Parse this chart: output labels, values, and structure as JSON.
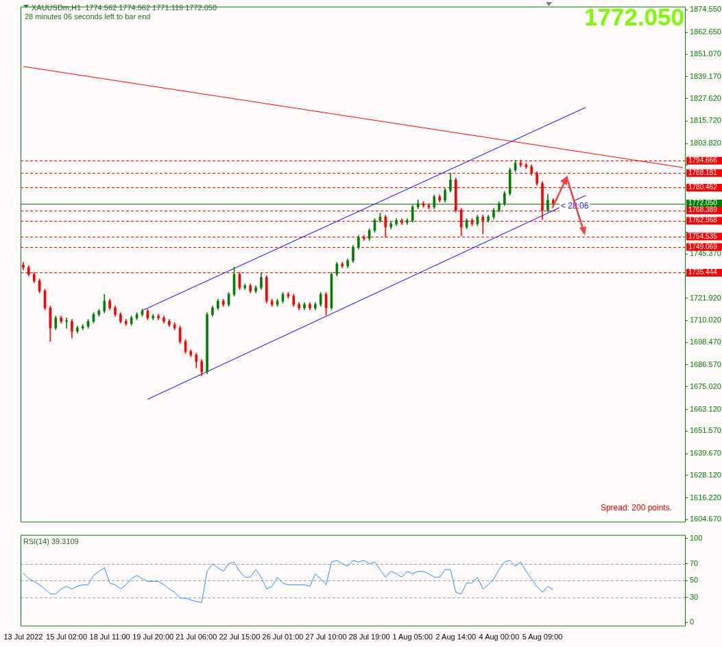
{
  "chart_data": [
    {
      "type": "candlestick",
      "tick_labels": "y",
      "annotations": [
        "XAUUSDm,H1  1774.562 1774.562 1771.119 1772.050",
        "28 minutes 06 seconds left to bar end",
        "1772.050",
        "Spread: 200 points.",
        "< 28:06"
      ],
      "categories": [
        null,
        null,
        null,
        null,
        null,
        null,
        null,
        null,
        null,
        null,
        null,
        null,
        null,
        null,
        null,
        null,
        null,
        null,
        null,
        null,
        null,
        null,
        null,
        null,
        null,
        null,
        null,
        null,
        null,
        null,
        null,
        null,
        null,
        null,
        null,
        null,
        null,
        null,
        null,
        null,
        null,
        null,
        null,
        null,
        null,
        null,
        null,
        null,
        null,
        null,
        null,
        null,
        null,
        null,
        null,
        null,
        null,
        null,
        null,
        null,
        null,
        null,
        null,
        null,
        null,
        null,
        null,
        null,
        null,
        null,
        null,
        null,
        null,
        null,
        null,
        null,
        null,
        null,
        null,
        null,
        null,
        null,
        null,
        null,
        null,
        null,
        null,
        null,
        null,
        null,
        null,
        null,
        null,
        null,
        null,
        null,
        null,
        null,
        null,
        null,
        null,
        null,
        null,
        null,
        null,
        null,
        null,
        null,
        null,
        null,
        null,
        null,
        null,
        null,
        null,
        null,
        null,
        null,
        null,
        null,
        null,
        null,
        null
      ],
      "ohlc": [
        [
          1739.5,
          1741.0,
          1737.0,
          1738.2
        ],
        [
          1738.2,
          1739.2,
          1733.6,
          1734.6
        ],
        [
          1734.6,
          1735.6,
          1730.1,
          1731.1
        ],
        [
          1731.1,
          1732.1,
          1724.7,
          1725.7
        ],
        [
          1725.7,
          1726.7,
          1715.8,
          1716.8
        ],
        [
          1716.8,
          1717.8,
          1699.0,
          1706.2
        ],
        [
          1706.2,
          1712.5,
          1705.2,
          1711.5
        ],
        [
          1711.5,
          1712.5,
          1708.7,
          1709.7
        ],
        [
          1709.7,
          1711.5,
          1706.0,
          1709.7
        ],
        [
          1709.7,
          1710.7,
          1701.0,
          1704.4
        ],
        [
          1704.4,
          1707.2,
          1703.4,
          1706.2
        ],
        [
          1706.2,
          1708.0,
          1705.2,
          1707.0
        ],
        [
          1707.0,
          1710.7,
          1706.0,
          1709.7
        ],
        [
          1709.7,
          1714.3,
          1708.7,
          1713.3
        ],
        [
          1713.3,
          1716.1,
          1712.3,
          1715.1
        ],
        [
          1715.1,
          1724.0,
          1714.1,
          1720.4
        ],
        [
          1720.4,
          1721.4,
          1715.8,
          1716.8
        ],
        [
          1716.8,
          1717.8,
          1712.3,
          1713.3
        ],
        [
          1713.3,
          1714.3,
          1708.7,
          1709.7
        ],
        [
          1709.7,
          1710.7,
          1707.5,
          1708.5
        ],
        [
          1708.5,
          1712.5,
          1707.5,
          1711.5
        ],
        [
          1711.5,
          1714.3,
          1710.5,
          1713.3
        ],
        [
          1713.3,
          1716.1,
          1712.3,
          1715.1
        ],
        [
          1715.1,
          1716.1,
          1710.5,
          1711.5
        ],
        [
          1711.5,
          1713.4,
          1710.5,
          1712.4
        ],
        [
          1712.4,
          1713.4,
          1710.5,
          1711.5
        ],
        [
          1711.5,
          1712.5,
          1708.7,
          1709.7
        ],
        [
          1709.7,
          1710.7,
          1706.9,
          1707.9
        ],
        [
          1707.9,
          1708.9,
          1705.2,
          1706.2
        ],
        [
          1706.2,
          1707.2,
          1698.0,
          1699.0
        ],
        [
          1699.0,
          1700.0,
          1692.7,
          1693.7
        ],
        [
          1693.7,
          1694.7,
          1690.9,
          1691.9
        ],
        [
          1691.9,
          1692.9,
          1685.0,
          1688.4
        ],
        [
          1688.4,
          1689.4,
          1681.0,
          1683.0
        ],
        [
          1683.0,
          1714.3,
          1682.0,
          1713.3
        ],
        [
          1713.3,
          1717.8,
          1712.3,
          1716.8
        ],
        [
          1716.8,
          1721.4,
          1715.8,
          1720.4
        ],
        [
          1720.4,
          1721.4,
          1717.6,
          1718.6
        ],
        [
          1718.6,
          1725.0,
          1717.6,
          1724.0
        ],
        [
          1724.0,
          1738.5,
          1723.0,
          1734.6
        ],
        [
          1734.6,
          1735.6,
          1726.5,
          1727.5
        ],
        [
          1727.5,
          1729.5,
          1726.5,
          1728.5
        ],
        [
          1728.5,
          1729.5,
          1724.7,
          1725.7
        ],
        [
          1725.7,
          1728.5,
          1724.7,
          1727.5
        ],
        [
          1727.5,
          1735.3,
          1726.5,
          1732.9
        ],
        [
          1732.9,
          1733.9,
          1719.4,
          1720.4
        ],
        [
          1720.4,
          1721.4,
          1717.6,
          1718.6
        ],
        [
          1718.6,
          1721.4,
          1717.6,
          1720.4
        ],
        [
          1720.4,
          1725.0,
          1719.4,
          1724.0
        ],
        [
          1724.0,
          1725.0,
          1722.0,
          1723.0
        ],
        [
          1723.0,
          1724.0,
          1717.6,
          1718.6
        ],
        [
          1718.6,
          1719.6,
          1715.8,
          1716.8
        ],
        [
          1716.8,
          1719.6,
          1715.8,
          1718.6
        ],
        [
          1718.6,
          1719.6,
          1715.8,
          1716.8
        ],
        [
          1716.8,
          1719.6,
          1715.8,
          1718.6
        ],
        [
          1718.6,
          1725.0,
          1717.6,
          1724.0
        ],
        [
          1724.0,
          1725.0,
          1713.0,
          1716.8
        ],
        [
          1716.8,
          1735.6,
          1715.8,
          1734.6
        ],
        [
          1734.6,
          1741.0,
          1733.6,
          1740.0
        ],
        [
          1740.0,
          1741.0,
          1738.0,
          1739.0
        ],
        [
          1739.0,
          1742.8,
          1738.0,
          1741.8
        ],
        [
          1741.8,
          1749.9,
          1740.8,
          1748.9
        ],
        [
          1748.9,
          1755.2,
          1747.9,
          1754.2
        ],
        [
          1754.2,
          1755.2,
          1752.5,
          1753.5
        ],
        [
          1753.5,
          1758.8,
          1752.5,
          1757.8
        ],
        [
          1757.8,
          1764.1,
          1756.8,
          1763.1
        ],
        [
          1763.1,
          1767.0,
          1762.1,
          1764.9
        ],
        [
          1764.9,
          1765.9,
          1754.0,
          1759.6
        ],
        [
          1759.6,
          1762.3,
          1758.6,
          1761.3
        ],
        [
          1761.3,
          1764.1,
          1760.3,
          1763.1
        ],
        [
          1763.1,
          1764.1,
          1761.0,
          1762.0
        ],
        [
          1762.0,
          1764.1,
          1761.0,
          1763.1
        ],
        [
          1763.1,
          1771.2,
          1762.1,
          1770.2
        ],
        [
          1770.2,
          1774.0,
          1769.2,
          1772.0
        ],
        [
          1772.0,
          1773.0,
          1770.0,
          1771.0
        ],
        [
          1771.0,
          1772.0,
          1769.2,
          1770.2
        ],
        [
          1770.2,
          1776.6,
          1769.2,
          1775.6
        ],
        [
          1775.6,
          1776.6,
          1772.8,
          1773.8
        ],
        [
          1773.8,
          1780.1,
          1772.8,
          1779.1
        ],
        [
          1779.1,
          1788.2,
          1778.1,
          1784.5
        ],
        [
          1784.5,
          1785.5,
          1767.5,
          1768.5
        ],
        [
          1768.5,
          1769.5,
          1755.0,
          1759.6
        ],
        [
          1759.6,
          1764.1,
          1758.6,
          1763.1
        ],
        [
          1763.1,
          1764.1,
          1760.3,
          1761.3
        ],
        [
          1761.3,
          1765.9,
          1760.3,
          1764.9
        ],
        [
          1764.9,
          1765.9,
          1756.0,
          1763.1
        ],
        [
          1763.1,
          1765.9,
          1762.1,
          1764.9
        ],
        [
          1764.9,
          1769.5,
          1763.9,
          1768.5
        ],
        [
          1768.5,
          1773.0,
          1767.5,
          1772.0
        ],
        [
          1772.0,
          1778.4,
          1771.0,
          1777.4
        ],
        [
          1777.4,
          1790.8,
          1776.4,
          1789.8
        ],
        [
          1789.8,
          1795.0,
          1788.8,
          1793.4
        ],
        [
          1793.4,
          1795.0,
          1791.5,
          1792.5
        ],
        [
          1792.5,
          1793.5,
          1790.6,
          1791.6
        ],
        [
          1791.6,
          1792.6,
          1787.0,
          1788.0
        ],
        [
          1788.0,
          1789.0,
          1781.7,
          1782.7
        ],
        [
          1782.7,
          1783.7,
          1763.5,
          1768.5
        ],
        [
          1768.5,
          1777.0,
          1767.5,
          1773.8
        ],
        [
          1773.8,
          1774.6,
          1771.1,
          1772.1
        ],
        null,
        null,
        null,
        null,
        null,
        null,
        null,
        null,
        null,
        null,
        null,
        null,
        null,
        null,
        null,
        null,
        null,
        null,
        null,
        null,
        null,
        null,
        null,
        null
      ],
      "series": [
        {
          "type": "line",
          "color": "#ff0000",
          "values": [
            1844.6,
            null,
            null,
            null,
            null,
            null,
            null,
            null,
            null,
            null,
            null,
            null,
            null,
            null,
            null,
            null,
            null,
            null,
            null,
            null,
            null,
            null,
            null,
            null,
            null,
            null,
            null,
            null,
            null,
            null,
            null,
            null,
            null,
            null,
            null,
            null,
            null,
            null,
            null,
            null,
            null,
            null,
            null,
            null,
            null,
            null,
            null,
            null,
            null,
            null,
            null,
            null,
            null,
            null,
            null,
            null,
            null,
            null,
            null,
            null,
            null,
            null,
            null,
            null,
            null,
            null,
            null,
            null,
            null,
            null,
            null,
            null,
            null,
            null,
            null,
            null,
            null,
            null,
            null,
            null,
            null,
            null,
            null,
            null,
            null,
            null,
            null,
            null,
            null,
            null,
            null,
            null,
            null,
            null,
            null,
            null,
            null,
            null,
            null,
            null,
            null,
            null,
            null,
            null,
            null,
            null,
            null,
            null,
            null,
            null,
            null,
            null,
            null,
            null,
            null,
            null,
            null,
            null,
            null,
            null,
            null,
            null,
            1791.1
          ]
        },
        {
          "type": "line",
          "color": "#0000ff",
          "values": [
            null,
            null,
            null,
            null,
            null,
            null,
            null,
            null,
            null,
            null,
            null,
            null,
            null,
            null,
            null,
            null,
            null,
            null,
            null,
            null,
            null,
            null,
            1715.4,
            null,
            null,
            null,
            null,
            null,
            null,
            null,
            null,
            null,
            null,
            null,
            null,
            null,
            null,
            null,
            null,
            null,
            null,
            null,
            null,
            null,
            null,
            null,
            null,
            null,
            null,
            null,
            null,
            null,
            null,
            null,
            null,
            null,
            null,
            null,
            null,
            null,
            null,
            null,
            null,
            null,
            null,
            null,
            null,
            null,
            null,
            null,
            null,
            null,
            null,
            null,
            null,
            null,
            null,
            null,
            null,
            null,
            null,
            null,
            null,
            null,
            null,
            null,
            null,
            null,
            null,
            null,
            null,
            null,
            null,
            null,
            null,
            null,
            null,
            null,
            null,
            null,
            null,
            null,
            null,
            null,
            1822.9,
            null,
            null,
            null,
            null,
            null,
            null,
            null,
            null,
            null,
            null,
            null,
            null,
            null,
            null,
            null,
            null,
            null,
            null
          ]
        },
        {
          "type": "line",
          "color": "#0000ff",
          "values": [
            null,
            null,
            null,
            null,
            null,
            null,
            null,
            null,
            null,
            null,
            null,
            null,
            null,
            null,
            null,
            null,
            null,
            null,
            null,
            null,
            null,
            null,
            null,
            1668.4,
            null,
            null,
            null,
            null,
            null,
            null,
            null,
            null,
            null,
            null,
            null,
            null,
            null,
            null,
            null,
            null,
            null,
            null,
            null,
            null,
            null,
            null,
            null,
            null,
            null,
            null,
            null,
            null,
            null,
            null,
            null,
            null,
            null,
            null,
            null,
            null,
            null,
            null,
            null,
            null,
            null,
            null,
            null,
            null,
            null,
            null,
            null,
            null,
            null,
            null,
            null,
            null,
            null,
            null,
            null,
            null,
            null,
            null,
            null,
            null,
            null,
            null,
            null,
            null,
            null,
            null,
            null,
            null,
            null,
            null,
            null,
            null,
            null,
            null,
            null,
            null,
            null,
            null,
            null,
            null,
            1776.3,
            null,
            null,
            null,
            null,
            null,
            null,
            null,
            null,
            null,
            null,
            null,
            null,
            null,
            null,
            null,
            null,
            null,
            null
          ]
        }
      ],
      "ylim": [
        1603.6,
        1876.3
      ],
      "yticks": [
        {
          "value": 1874.55,
          "label": "1874.550"
        },
        {
          "value": 1862.65,
          "label": "1862.650"
        },
        {
          "value": 1851.07,
          "label": "1851.070"
        },
        {
          "value": 1839.17,
          "label": "1839.170"
        },
        {
          "value": 1827.62,
          "label": "1827.620"
        },
        {
          "value": 1815.72,
          "label": "1815.720"
        },
        {
          "value": 1803.82,
          "label": "1803.820"
        },
        {
          "value": 1792.27,
          "label": null
        },
        {
          "value": 1756.92,
          "label": null
        },
        {
          "value": 1745.37,
          "label": "1745.370"
        },
        {
          "value": 1733.47,
          "label": null
        },
        {
          "value": 1721.92,
          "label": "1721.920"
        },
        {
          "value": 1710.02,
          "label": "1710.020"
        },
        {
          "value": 1698.47,
          "label": "1698.470"
        },
        {
          "value": 1686.57,
          "label": "1686.570"
        },
        {
          "value": 1675.02,
          "label": "1675.020"
        },
        {
          "value": 1663.12,
          "label": "1663.120"
        },
        {
          "value": 1651.57,
          "label": "1651.570"
        },
        {
          "value": 1639.67,
          "label": "1639.670"
        },
        {
          "value": 1628.12,
          "label": "1628.120"
        },
        {
          "value": 1616.22,
          "label": "1616.220"
        },
        {
          "value": 1604.67,
          "label": "1604.670"
        }
      ],
      "ref_lines": [
        {
          "axis": "y",
          "value": 1794.666,
          "label": "1794.666",
          "color": "#ff0000",
          "line_style": "dashed"
        },
        {
          "axis": "y",
          "value": 1788.181,
          "label": "1788.181",
          "color": "#ff0000",
          "line_style": "dashed"
        },
        {
          "axis": "y",
          "value": 1780.462,
          "label": "1780.462",
          "color": "#ff0000",
          "line_style": "dashed"
        },
        {
          "axis": "y",
          "value": 1772.05,
          "label": "1772.050",
          "color": "#008000",
          "line_style": "solid"
        },
        {
          "axis": "y",
          "value": 1768.389,
          "label": "1768.389",
          "color": "#ff0000",
          "line_style": "dashed"
        },
        {
          "axis": "y",
          "value": 1762.968,
          "label": "1762.968",
          "color": "#ff0000",
          "line_style": "dashed"
        },
        {
          "axis": "y",
          "value": 1754.535,
          "label": "1754.535",
          "color": "#ff0000",
          "line_style": "dashed"
        },
        {
          "axis": "y",
          "value": 1749.069,
          "label": "1749.069",
          "color": "#ff0000",
          "line_style": "dashed"
        },
        {
          "axis": "y",
          "value": 1735.444,
          "label": "1735.444",
          "color": "#ff0000",
          "line_style": "dashed"
        }
      ]
    },
    {
      "type": "line",
      "title": "RSI(14) 39.3109",
      "categories": [
        "13 Jul 2022",
        null,
        null,
        null,
        null,
        null,
        null,
        null,
        "15 Jul 02:00",
        null,
        null,
        null,
        null,
        null,
        null,
        null,
        "18 Jul 11:00",
        null,
        null,
        null,
        null,
        null,
        null,
        null,
        "19 Jul 20:00",
        null,
        null,
        null,
        null,
        null,
        null,
        null,
        "21 Jul 06:00",
        null,
        null,
        null,
        null,
        null,
        null,
        null,
        "22 Jul 15:00",
        null,
        null,
        null,
        null,
        null,
        null,
        null,
        "26 Jul 01:00",
        null,
        null,
        null,
        null,
        null,
        null,
        null,
        "27 Jul 10:00",
        null,
        null,
        null,
        null,
        null,
        null,
        null,
        "28 Jul 19:00",
        null,
        null,
        null,
        null,
        null,
        null,
        null,
        "1 Aug 05:00",
        null,
        null,
        null,
        null,
        null,
        null,
        null,
        "2 Aug 14:00",
        null,
        null,
        null,
        null,
        null,
        null,
        null,
        "4 Aug 00:00",
        null,
        null,
        null,
        null,
        null,
        null,
        null,
        "5 Aug 09:00",
        null,
        null,
        null,
        null,
        null,
        null,
        null,
        null,
        null,
        null,
        null,
        null,
        null,
        null,
        null,
        null,
        null,
        null,
        null,
        null,
        null,
        null,
        null,
        null,
        null,
        null
      ],
      "series": [
        {
          "color": "#1e90ff",
          "values": [
            59,
            52,
            49,
            45,
            40,
            34,
            34,
            40,
            43,
            40,
            43,
            45,
            45,
            56,
            61,
            65,
            47,
            45,
            40,
            45,
            52,
            56,
            52,
            49,
            49,
            49,
            45,
            40,
            36,
            29,
            29,
            27,
            25,
            24,
            61,
            70,
            65,
            61,
            70,
            72,
            61,
            54,
            54,
            63,
            54,
            40,
            43,
            54,
            47,
            45,
            45,
            45,
            45,
            43,
            58,
            52,
            45,
            72,
            74,
            70,
            67,
            74,
            72,
            74,
            70,
            72,
            63,
            54,
            61,
            58,
            54,
            61,
            58,
            61,
            61,
            58,
            54,
            54,
            63,
            63,
            36,
            34,
            47,
            47,
            54,
            40,
            45,
            52,
            63,
            72,
            74,
            67,
            72,
            61,
            52,
            43,
            36,
            43,
            39,
            null,
            null,
            null,
            null,
            null,
            null,
            null,
            null,
            null,
            null,
            null,
            null,
            null,
            null,
            null,
            null,
            null,
            null,
            null,
            null,
            null,
            null,
            null,
            null
          ]
        }
      ],
      "ylim": [
        -3.6,
        104.3
      ],
      "yticks": [
        0,
        30,
        50,
        70,
        100
      ],
      "ref_lines": [
        {
          "axis": "y",
          "value": 70,
          "color": "#a0a0a0",
          "line_style": "dashed"
        },
        {
          "axis": "y",
          "value": 50,
          "color": "#a0a0a0",
          "line_style": "dashed"
        },
        {
          "axis": "y",
          "value": 30,
          "color": "#a0a0a0",
          "line_style": "dashed"
        }
      ]
    }
  ]
}
